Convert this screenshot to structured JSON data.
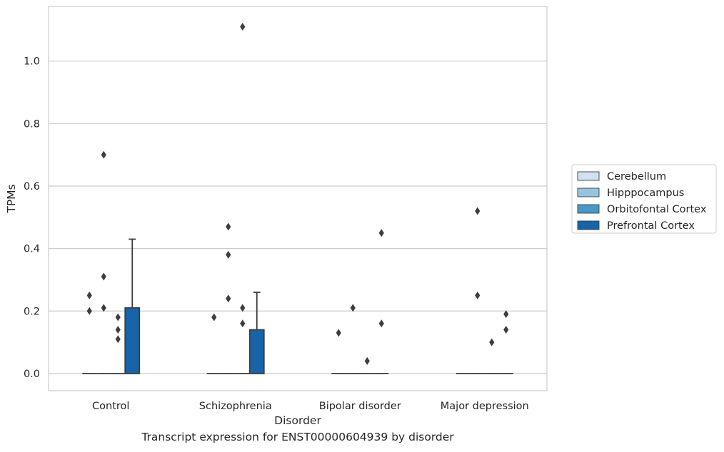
{
  "caption": "Transcript expression for ENST00000604939 by disorder",
  "chart_data": {
    "type": "box",
    "title": "",
    "xlabel": "Disorder",
    "ylabel": "TPMs",
    "ylim": [
      -0.055,
      1.175
    ],
    "yticks": [
      0.0,
      0.2,
      0.4,
      0.6,
      0.8,
      1.0
    ],
    "ytick_labels": [
      "0.0",
      "0.2",
      "0.4",
      "0.6",
      "0.8",
      "1.0"
    ],
    "grid": "horizontal",
    "legend_position": "right",
    "categories": [
      "Control",
      "Schizophrenia",
      "Bipolar disorder",
      "Major depression"
    ],
    "series": [
      {
        "name": "Cerebellum",
        "color": "#d0e1f2",
        "boxes": [
          {
            "q1": 0,
            "median": 0,
            "q3": 0,
            "whisker_low": 0,
            "whisker_high": 0,
            "outliers": [
              0.25,
              0.2
            ]
          },
          {
            "q1": 0,
            "median": 0,
            "q3": 0,
            "whisker_low": 0,
            "whisker_high": 0,
            "outliers": [
              0.18
            ]
          },
          {
            "q1": 0,
            "median": 0,
            "q3": 0,
            "whisker_low": 0,
            "whisker_high": 0,
            "outliers": [
              0.13
            ]
          },
          {
            "q1": 0,
            "median": 0,
            "q3": 0,
            "whisker_low": 0,
            "whisker_high": 0,
            "outliers": []
          }
        ]
      },
      {
        "name": "Hipppocampus",
        "color": "#94c4df",
        "boxes": [
          {
            "q1": 0,
            "median": 0,
            "q3": 0,
            "whisker_low": 0,
            "whisker_high": 0,
            "outliers": [
              0.7,
              0.31,
              0.21
            ]
          },
          {
            "q1": 0,
            "median": 0,
            "q3": 0,
            "whisker_low": 0,
            "whisker_high": 0,
            "outliers": [
              0.47,
              0.38,
              0.24
            ]
          },
          {
            "q1": 0,
            "median": 0,
            "q3": 0,
            "whisker_low": 0,
            "whisker_high": 0,
            "outliers": [
              0.21
            ]
          },
          {
            "q1": 0,
            "median": 0,
            "q3": 0,
            "whisker_low": 0,
            "whisker_high": 0,
            "outliers": [
              0.52,
              0.25
            ]
          }
        ]
      },
      {
        "name": "Orbitofontal Cortex",
        "color": "#4a98c9",
        "boxes": [
          {
            "q1": 0,
            "median": 0,
            "q3": 0,
            "whisker_low": 0,
            "whisker_high": 0,
            "outliers": [
              0.18,
              0.14,
              0.11
            ]
          },
          {
            "q1": 0,
            "median": 0,
            "q3": 0,
            "whisker_low": 0,
            "whisker_high": 0,
            "outliers": [
              1.11,
              0.21,
              0.16
            ]
          },
          {
            "q1": 0,
            "median": 0,
            "q3": 0,
            "whisker_low": 0,
            "whisker_high": 0,
            "outliers": [
              0.04
            ]
          },
          {
            "q1": 0,
            "median": 0,
            "q3": 0,
            "whisker_low": 0,
            "whisker_high": 0,
            "outliers": [
              0.1
            ]
          }
        ]
      },
      {
        "name": "Prefrontal Cortex",
        "color": "#1764ab",
        "boxes": [
          {
            "q1": 0,
            "median": 0,
            "q3": 0.21,
            "whisker_low": 0,
            "whisker_high": 0.43,
            "outliers": []
          },
          {
            "q1": 0,
            "median": 0,
            "q3": 0.14,
            "whisker_low": 0,
            "whisker_high": 0.26,
            "outliers": []
          },
          {
            "q1": 0,
            "median": 0,
            "q3": 0,
            "whisker_low": 0,
            "whisker_high": 0,
            "outliers": [
              0.45,
              0.16
            ]
          },
          {
            "q1": 0,
            "median": 0,
            "q3": 0,
            "whisker_low": 0,
            "whisker_high": 0,
            "outliers": [
              0.19,
              0.14
            ]
          }
        ]
      }
    ]
  }
}
